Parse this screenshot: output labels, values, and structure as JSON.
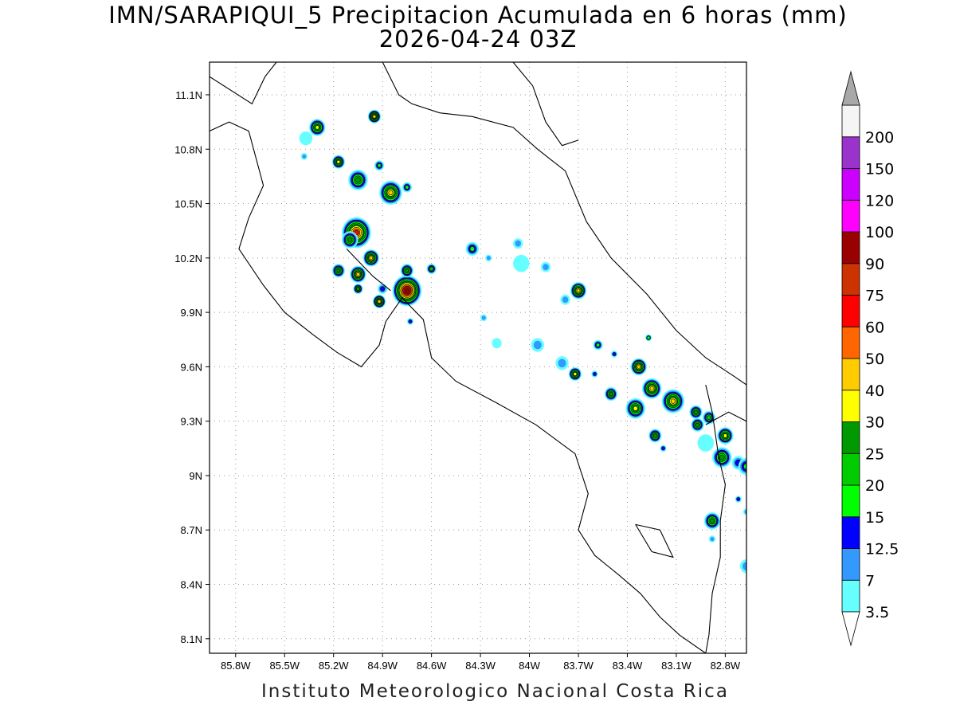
{
  "title": {
    "line1": "IMN/SARAPIQUI_5 Precipitacion Acumulada en 6 horas (mm)",
    "line2": "2026-04-24 03Z"
  },
  "footer": "Instituto Meteorologico Nacional Costa Rica",
  "map": {
    "lon_range": [
      -85.96,
      -82.67
    ],
    "lat_range": [
      8.02,
      11.28
    ],
    "lon_ticks": [
      {
        "value": -85.8,
        "label": "85.8W"
      },
      {
        "value": -85.5,
        "label": "85.5W"
      },
      {
        "value": -85.2,
        "label": "85.2W"
      },
      {
        "value": -84.9,
        "label": "84.9W"
      },
      {
        "value": -84.6,
        "label": "84.6W"
      },
      {
        "value": -84.3,
        "label": "84.3W"
      },
      {
        "value": -84.0,
        "label": "84W"
      },
      {
        "value": -83.7,
        "label": "83.7W"
      },
      {
        "value": -83.4,
        "label": "83.4W"
      },
      {
        "value": -83.1,
        "label": "83.1W"
      },
      {
        "value": -82.8,
        "label": "82.8W"
      }
    ],
    "lat_ticks": [
      {
        "value": 8.1,
        "label": "8.1N"
      },
      {
        "value": 8.4,
        "label": "8.4N"
      },
      {
        "value": 8.7,
        "label": "8.7N"
      },
      {
        "value": 9.0,
        "label": "9N"
      },
      {
        "value": 9.3,
        "label": "9.3N"
      },
      {
        "value": 9.6,
        "label": "9.6N"
      },
      {
        "value": 9.9,
        "label": "9.9N"
      },
      {
        "value": 10.2,
        "label": "10.2N"
      },
      {
        "value": 10.5,
        "label": "10.5N"
      },
      {
        "value": 10.8,
        "label": "10.8N"
      },
      {
        "value": 11.1,
        "label": "11.1N"
      }
    ],
    "grid": "dotted",
    "coastlines": [
      [
        [
          -85.96,
          10.9
        ],
        [
          -85.84,
          10.95
        ],
        [
          -85.72,
          10.9
        ],
        [
          -85.63,
          10.6
        ],
        [
          -85.72,
          10.42
        ],
        [
          -85.78,
          10.25
        ],
        [
          -85.63,
          10.05
        ],
        [
          -85.5,
          9.9
        ],
        [
          -85.33,
          9.78
        ],
        [
          -85.18,
          9.68
        ],
        [
          -85.03,
          9.6
        ],
        [
          -84.92,
          9.72
        ],
        [
          -84.88,
          9.85
        ],
        [
          -84.78,
          9.98
        ],
        [
          -84.65,
          9.86
        ],
        [
          -84.6,
          9.65
        ],
        [
          -84.45,
          9.52
        ],
        [
          -84.2,
          9.4
        ],
        [
          -83.96,
          9.28
        ],
        [
          -83.72,
          9.12
        ],
        [
          -83.64,
          8.9
        ],
        [
          -83.7,
          8.7
        ],
        [
          -83.6,
          8.56
        ],
        [
          -83.45,
          8.45
        ],
        [
          -83.32,
          8.35
        ],
        [
          -83.2,
          8.22
        ],
        [
          -83.08,
          8.12
        ],
        [
          -82.92,
          8.02
        ]
      ],
      [
        [
          -85.96,
          11.2
        ],
        [
          -85.7,
          11.05
        ],
        [
          -85.62,
          11.2
        ],
        [
          -85.55,
          11.28
        ]
      ],
      [
        [
          -85.12,
          10.25
        ],
        [
          -84.96,
          10.1
        ],
        [
          -84.85,
          10.02
        ]
      ],
      [
        [
          -84.9,
          11.28
        ],
        [
          -84.8,
          11.1
        ],
        [
          -84.72,
          11.05
        ],
        [
          -84.55,
          11.0
        ],
        [
          -84.35,
          10.98
        ],
        [
          -84.1,
          10.92
        ],
        [
          -83.95,
          10.8
        ],
        [
          -83.88,
          10.75
        ],
        [
          -83.78,
          10.68
        ],
        [
          -83.65,
          10.4
        ],
        [
          -83.5,
          10.2
        ],
        [
          -83.28,
          10.0
        ],
        [
          -83.1,
          9.8
        ],
        [
          -82.92,
          9.65
        ],
        [
          -82.75,
          9.55
        ],
        [
          -82.67,
          9.5
        ]
      ],
      [
        [
          -84.1,
          11.28
        ],
        [
          -83.98,
          11.15
        ],
        [
          -83.9,
          10.95
        ],
        [
          -83.8,
          10.82
        ],
        [
          -83.7,
          10.85
        ]
      ],
      [
        [
          -82.92,
          9.5
        ],
        [
          -82.88,
          9.35
        ],
        [
          -82.84,
          9.1
        ],
        [
          -82.8,
          8.95
        ],
        [
          -82.83,
          8.75
        ],
        [
          -82.83,
          8.55
        ],
        [
          -82.88,
          8.35
        ],
        [
          -82.9,
          8.12
        ],
        [
          -82.92,
          8.02
        ]
      ],
      [
        [
          -82.92,
          9.28
        ],
        [
          -82.78,
          9.35
        ],
        [
          -82.67,
          9.3
        ]
      ],
      [
        [
          -83.35,
          8.73
        ],
        [
          -83.2,
          8.7
        ],
        [
          -83.12,
          8.55
        ],
        [
          -83.25,
          8.58
        ],
        [
          -83.35,
          8.73
        ]
      ]
    ],
    "rain_cells": [
      {
        "lon": -85.3,
        "lat": 10.92,
        "r": 0.05,
        "mm": 30
      },
      {
        "lon": -85.37,
        "lat": 10.86,
        "r": 0.04,
        "mm": 3.5
      },
      {
        "lon": -85.38,
        "lat": 10.76,
        "r": 0.02,
        "mm": 7
      },
      {
        "lon": -84.95,
        "lat": 10.98,
        "r": 0.04,
        "mm": 40
      },
      {
        "lon": -85.17,
        "lat": 10.73,
        "r": 0.04,
        "mm": 30
      },
      {
        "lon": -85.05,
        "lat": 10.63,
        "r": 0.06,
        "mm": 25
      },
      {
        "lon": -84.92,
        "lat": 10.71,
        "r": 0.03,
        "mm": 15
      },
      {
        "lon": -84.85,
        "lat": 10.56,
        "r": 0.07,
        "mm": 40
      },
      {
        "lon": -84.75,
        "lat": 10.59,
        "r": 0.03,
        "mm": 15
      },
      {
        "lon": -85.06,
        "lat": 10.34,
        "r": 0.09,
        "mm": 60
      },
      {
        "lon": -85.1,
        "lat": 10.3,
        "r": 0.05,
        "mm": 25
      },
      {
        "lon": -84.97,
        "lat": 10.2,
        "r": 0.05,
        "mm": 40
      },
      {
        "lon": -85.17,
        "lat": 10.13,
        "r": 0.04,
        "mm": 25
      },
      {
        "lon": -85.05,
        "lat": 10.11,
        "r": 0.05,
        "mm": 40
      },
      {
        "lon": -84.9,
        "lat": 10.03,
        "r": 0.03,
        "mm": 12.5
      },
      {
        "lon": -85.05,
        "lat": 10.03,
        "r": 0.03,
        "mm": 25
      },
      {
        "lon": -84.92,
        "lat": 9.96,
        "r": 0.04,
        "mm": 40
      },
      {
        "lon": -84.75,
        "lat": 10.02,
        "r": 0.09,
        "mm": 90
      },
      {
        "lon": -84.75,
        "lat": 10.13,
        "r": 0.04,
        "mm": 25
      },
      {
        "lon": -84.6,
        "lat": 10.14,
        "r": 0.03,
        "mm": 20
      },
      {
        "lon": -84.73,
        "lat": 9.85,
        "r": 0.02,
        "mm": 12.5
      },
      {
        "lon": -84.35,
        "lat": 10.25,
        "r": 0.04,
        "mm": 15
      },
      {
        "lon": -84.25,
        "lat": 10.2,
        "r": 0.02,
        "mm": 7
      },
      {
        "lon": -84.07,
        "lat": 10.28,
        "r": 0.03,
        "mm": 7
      },
      {
        "lon": -84.05,
        "lat": 10.17,
        "r": 0.05,
        "mm": 3.5
      },
      {
        "lon": -83.9,
        "lat": 10.15,
        "r": 0.03,
        "mm": 7
      },
      {
        "lon": -83.7,
        "lat": 10.02,
        "r": 0.05,
        "mm": 40
      },
      {
        "lon": -83.78,
        "lat": 9.97,
        "r": 0.03,
        "mm": 7
      },
      {
        "lon": -84.28,
        "lat": 9.87,
        "r": 0.02,
        "mm": 7
      },
      {
        "lon": -84.2,
        "lat": 9.73,
        "r": 0.03,
        "mm": 3.5
      },
      {
        "lon": -83.95,
        "lat": 9.72,
        "r": 0.04,
        "mm": 7
      },
      {
        "lon": -83.8,
        "lat": 9.62,
        "r": 0.04,
        "mm": 7
      },
      {
        "lon": -83.72,
        "lat": 9.56,
        "r": 0.04,
        "mm": 30
      },
      {
        "lon": -83.6,
        "lat": 9.56,
        "r": 0.02,
        "mm": 12.5
      },
      {
        "lon": -83.58,
        "lat": 9.72,
        "r": 0.03,
        "mm": 15
      },
      {
        "lon": -83.48,
        "lat": 9.67,
        "r": 0.02,
        "mm": 12.5
      },
      {
        "lon": -83.5,
        "lat": 9.45,
        "r": 0.04,
        "mm": 25
      },
      {
        "lon": -83.33,
        "lat": 9.6,
        "r": 0.05,
        "mm": 40
      },
      {
        "lon": -83.27,
        "lat": 9.76,
        "r": 0.02,
        "mm": 15
      },
      {
        "lon": -83.25,
        "lat": 9.48,
        "r": 0.06,
        "mm": 40
      },
      {
        "lon": -83.35,
        "lat": 9.37,
        "r": 0.06,
        "mm": 30
      },
      {
        "lon": -83.12,
        "lat": 9.41,
        "r": 0.07,
        "mm": 40
      },
      {
        "lon": -82.98,
        "lat": 9.35,
        "r": 0.04,
        "mm": 25
      },
      {
        "lon": -83.23,
        "lat": 9.22,
        "r": 0.04,
        "mm": 25
      },
      {
        "lon": -83.18,
        "lat": 9.15,
        "r": 0.02,
        "mm": 12.5
      },
      {
        "lon": -82.97,
        "lat": 9.28,
        "r": 0.04,
        "mm": 25
      },
      {
        "lon": -82.9,
        "lat": 9.32,
        "r": 0.04,
        "mm": 20
      },
      {
        "lon": -82.92,
        "lat": 9.18,
        "r": 0.05,
        "mm": 3.5
      },
      {
        "lon": -82.8,
        "lat": 9.22,
        "r": 0.05,
        "mm": 30
      },
      {
        "lon": -82.82,
        "lat": 9.1,
        "r": 0.06,
        "mm": 25
      },
      {
        "lon": -82.72,
        "lat": 9.07,
        "r": 0.04,
        "mm": 12.5
      },
      {
        "lon": -82.67,
        "lat": 9.05,
        "r": 0.05,
        "mm": 15
      },
      {
        "lon": -82.72,
        "lat": 8.87,
        "r": 0.02,
        "mm": 12.5
      },
      {
        "lon": -82.88,
        "lat": 8.75,
        "r": 0.05,
        "mm": 25
      },
      {
        "lon": -82.88,
        "lat": 8.65,
        "r": 0.02,
        "mm": 7
      },
      {
        "lon": -82.67,
        "lat": 8.5,
        "r": 0.04,
        "mm": 7
      },
      {
        "lon": -82.67,
        "lat": 8.8,
        "r": 0.02,
        "mm": 7
      }
    ]
  },
  "colorbar": {
    "levels": [
      "3.5",
      "7",
      "12.5",
      "15",
      "20",
      "25",
      "30",
      "40",
      "50",
      "60",
      "75",
      "90",
      "100",
      "120",
      "150",
      "200"
    ],
    "colors": [
      "#66ffff",
      "#3399ff",
      "#0000ff",
      "#00ff00",
      "#00cc00",
      "#009900",
      "#ffff00",
      "#ffcc00",
      "#ff6600",
      "#ff0000",
      "#cc3300",
      "#990000",
      "#ff00ff",
      "#cc00ff",
      "#9933cc",
      "#f5f5f5"
    ],
    "over_color": "#a8a8a8",
    "under_color": "#ffffff"
  }
}
